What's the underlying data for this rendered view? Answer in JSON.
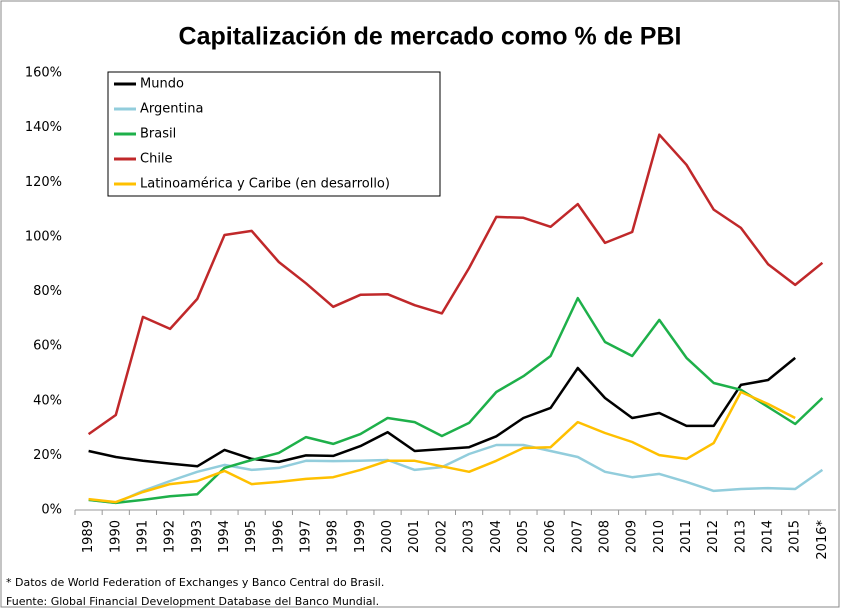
{
  "chart_data": {
    "type": "line",
    "title": "Capitalización de mercado como % de PBI",
    "categories": [
      "1989",
      "1990",
      "1991",
      "1992",
      "1993",
      "1994",
      "1995",
      "1996",
      "1997",
      "1998",
      "1999",
      "2000",
      "2001",
      "2002",
      "2003",
      "2004",
      "2005",
      "2006",
      "2007",
      "2008",
      "2009",
      "2010",
      "2011",
      "2012",
      "2013",
      "2014",
      "2015",
      "2016*"
    ],
    "series": [
      {
        "name": "Mundo",
        "color": "#000000",
        "values": [
          21.6,
          19.4,
          18,
          17,
          16,
          22,
          18.7,
          17.6,
          20,
          19.8,
          23.4,
          28.5,
          21.6,
          22.3,
          23,
          27,
          33.7,
          37.4,
          52,
          41,
          33.7,
          35.5,
          30.8,
          30.8,
          45.8,
          47.6,
          55.7,
          null
        ]
      },
      {
        "name": "Argentina",
        "color": "#92cddc",
        "values": [
          3.7,
          2.6,
          7,
          10.6,
          14,
          16.5,
          14.7,
          15.4,
          18,
          17.9,
          18,
          18.3,
          14.7,
          15.7,
          20.5,
          23.8,
          23.8,
          21.6,
          19.4,
          14,
          12,
          13.2,
          10.3,
          7,
          7.7,
          8,
          7.7,
          14.7
        ]
      },
      {
        "name": "Brasil",
        "color": "#1eb04a",
        "values": [
          3.7,
          2.6,
          3.7,
          5,
          5.8,
          15.4,
          18.3,
          20.9,
          26.7,
          24.2,
          27.8,
          33.7,
          32.2,
          27.1,
          31.9,
          43.2,
          49,
          56.4,
          77.6,
          61.5,
          56.4,
          69.6,
          55.7,
          46.5,
          44,
          37.7,
          31.5,
          41
        ]
      },
      {
        "name": "Chile",
        "color": "#c0282a",
        "values": [
          27.8,
          34.8,
          70.7,
          66.3,
          77.3,
          100.7,
          102.2,
          90.8,
          83,
          74.4,
          78.8,
          79,
          75,
          72,
          88.6,
          107.3,
          107,
          103.7,
          112,
          97.8,
          101.8,
          137.4,
          126.4,
          110,
          103.3,
          90,
          82.4,
          90.5
        ]
      },
      {
        "name": "Latinoamérica y Caribe (en desarrollo)",
        "color": "#ffc000",
        "values": [
          4,
          2.9,
          6.6,
          9.5,
          10.6,
          14.3,
          9.5,
          10.3,
          11.4,
          12,
          14.7,
          18,
          18,
          16,
          14,
          18,
          22.7,
          23,
          32.2,
          28.2,
          24.9,
          20.1,
          18.7,
          24.5,
          43.2,
          38.8,
          33.7,
          null
        ]
      }
    ],
    "ylim": [
      0,
      160
    ],
    "yticks": [
      {
        "value": 0,
        "label": "0%"
      },
      {
        "value": 20,
        "label": "20%"
      },
      {
        "value": 40,
        "label": "40%"
      },
      {
        "value": 60,
        "label": "60%"
      },
      {
        "value": 80,
        "label": "80%"
      },
      {
        "value": 100,
        "label": "100%"
      },
      {
        "value": 120,
        "label": "120%"
      },
      {
        "value": 140,
        "label": "140%"
      },
      {
        "value": 160,
        "label": "160%"
      }
    ],
    "grid": false,
    "legend": "top-left",
    "notes": [
      "* Datos de World Federation of Exchanges  y Banco Central do Brasil.",
      "Fuente: Global Financial Development Database del Banco Mundial."
    ]
  }
}
